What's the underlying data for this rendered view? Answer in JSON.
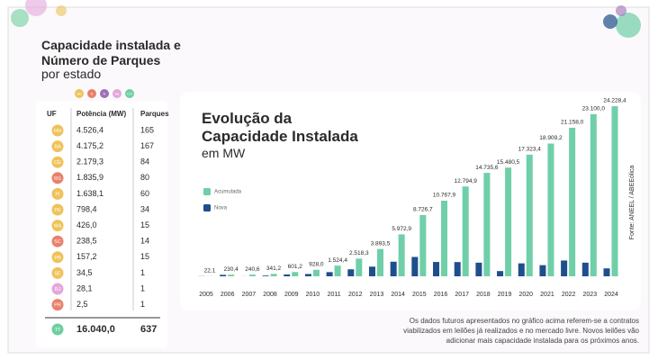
{
  "header": {
    "title": "Capacidade instalada e Número de Parques",
    "subtitle": "por estado"
  },
  "regions": [
    {
      "label": "NE",
      "color": "#efc25a"
    },
    {
      "label": "S",
      "color": "#e9806b"
    },
    {
      "label": "N",
      "color": "#9c6fb5"
    },
    {
      "label": "SE",
      "color": "#e4a6dc"
    },
    {
      "label": "CO",
      "color": "#6fcf9e"
    }
  ],
  "table": {
    "columns": [
      "UF",
      "Potência (MW)",
      "Parques"
    ],
    "rows": [
      {
        "uf": "RN",
        "power": "4.526,4",
        "parks": 165,
        "color": "#efc25a"
      },
      {
        "uf": "BA",
        "power": "4.175,2",
        "parks": 167,
        "color": "#efc25a"
      },
      {
        "uf": "CE",
        "power": "2.179,3",
        "parks": 84,
        "color": "#efc25a"
      },
      {
        "uf": "RS",
        "power": "1.835,9",
        "parks": 80,
        "color": "#e9806b"
      },
      {
        "uf": "PI",
        "power": "1.638,1",
        "parks": 60,
        "color": "#efc25a"
      },
      {
        "uf": "PE",
        "power": "798,4",
        "parks": 34,
        "color": "#efc25a"
      },
      {
        "uf": "MA",
        "power": "426,0",
        "parks": 15,
        "color": "#efc25a"
      },
      {
        "uf": "SC",
        "power": "238,5",
        "parks": 14,
        "color": "#e9806b"
      },
      {
        "uf": "PB",
        "power": "157,2",
        "parks": 15,
        "color": "#efc25a"
      },
      {
        "uf": "SE",
        "power": "34,5",
        "parks": 1,
        "color": "#efc25a"
      },
      {
        "uf": "RJ",
        "power": "28,1",
        "parks": 1,
        "color": "#e4a6dc"
      },
      {
        "uf": "PR",
        "power": "2,5",
        "parks": 1,
        "color": "#e9806b"
      }
    ],
    "total": {
      "uf": "TT",
      "power": "16.040,0",
      "parks": 637,
      "color": "#6fcf9e"
    }
  },
  "chart_data": {
    "type": "bar",
    "title": "Evolução da Capacidade Instalada",
    "subtitle": "em MW",
    "categories": [
      "2005",
      "2006",
      "2007",
      "2008",
      "2009",
      "2010",
      "2011",
      "2012",
      "2013",
      "2014",
      "2015",
      "2016",
      "2017",
      "2018",
      "2019",
      "2020",
      "2021",
      "2022",
      "2023",
      "2024"
    ],
    "series": [
      {
        "name": "Nova",
        "color": "#1f4e8c",
        "values": [
          22.1,
          208.3,
          10.2,
          100.6,
          260,
          326.8,
          596.4,
          993.9,
          1375.2,
          2079.4,
          2753.8,
          2041.2,
          2027,
          1940.7,
          744.9,
          1842.9,
          1585.8,
          2248.8,
          1942,
          1128.4
        ]
      },
      {
        "name": "Acumulada",
        "color": "#6fcfa8",
        "values": [
          22.1,
          230.4,
          240.6,
          341.2,
          601.2,
          928.0,
          1524.4,
          2518.3,
          3893.5,
          5972.9,
          8726.7,
          10767.9,
          12794.9,
          14735.6,
          15480.5,
          17323.4,
          18909.2,
          21158.0,
          23100.0,
          24228.4
        ],
        "value_labels": [
          "22,1",
          "230,4",
          "240,6",
          "341,2",
          "601,2",
          "928,0",
          "1.524,4",
          "2.518,3",
          "3.893,5",
          "5.972,9",
          "8.726,7",
          "10.767,9",
          "12.794,9",
          "14.735,6",
          "15.480,5",
          "17.323,4",
          "18.909,2",
          "21.158,0",
          "23.100,0",
          "24.228,4"
        ]
      }
    ],
    "ylim": [
      0,
      25000
    ],
    "grid": false
  },
  "source": "Fonte: ANEEL / ABEEólica",
  "footnote": "Os dados futuros apresentados no gráfico acima referem-se a contratos viabilizados em leilões já realizados e no mercado livre. Novos leilões vão adicionar mais capacidade instalada para os próximos anos."
}
